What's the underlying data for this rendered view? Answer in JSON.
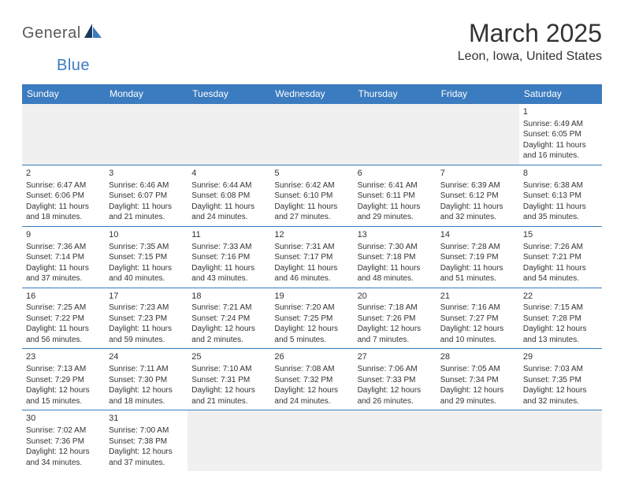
{
  "brand": {
    "text1": "General",
    "text2": "Blue",
    "text_color_1": "#5a5a5a",
    "text_color_2": "#3b7bbf",
    "mark_color_dark": "#1a3a5c",
    "mark_color_light": "#3b7bbf"
  },
  "title": "March 2025",
  "location": "Leon, Iowa, United States",
  "colors": {
    "header_bg": "#3b7bbf",
    "header_fg": "#ffffff",
    "cell_border": "#3b7bbf",
    "empty_bg": "#f0f0f0",
    "text": "#333333",
    "page_bg": "#ffffff"
  },
  "weekdays": [
    "Sunday",
    "Monday",
    "Tuesday",
    "Wednesday",
    "Thursday",
    "Friday",
    "Saturday"
  ],
  "weeks": [
    [
      null,
      null,
      null,
      null,
      null,
      null,
      {
        "d": "1",
        "sr": "Sunrise: 6:49 AM",
        "ss": "Sunset: 6:05 PM",
        "dl1": "Daylight: 11 hours",
        "dl2": "and 16 minutes."
      }
    ],
    [
      {
        "d": "2",
        "sr": "Sunrise: 6:47 AM",
        "ss": "Sunset: 6:06 PM",
        "dl1": "Daylight: 11 hours",
        "dl2": "and 18 minutes."
      },
      {
        "d": "3",
        "sr": "Sunrise: 6:46 AM",
        "ss": "Sunset: 6:07 PM",
        "dl1": "Daylight: 11 hours",
        "dl2": "and 21 minutes."
      },
      {
        "d": "4",
        "sr": "Sunrise: 6:44 AM",
        "ss": "Sunset: 6:08 PM",
        "dl1": "Daylight: 11 hours",
        "dl2": "and 24 minutes."
      },
      {
        "d": "5",
        "sr": "Sunrise: 6:42 AM",
        "ss": "Sunset: 6:10 PM",
        "dl1": "Daylight: 11 hours",
        "dl2": "and 27 minutes."
      },
      {
        "d": "6",
        "sr": "Sunrise: 6:41 AM",
        "ss": "Sunset: 6:11 PM",
        "dl1": "Daylight: 11 hours",
        "dl2": "and 29 minutes."
      },
      {
        "d": "7",
        "sr": "Sunrise: 6:39 AM",
        "ss": "Sunset: 6:12 PM",
        "dl1": "Daylight: 11 hours",
        "dl2": "and 32 minutes."
      },
      {
        "d": "8",
        "sr": "Sunrise: 6:38 AM",
        "ss": "Sunset: 6:13 PM",
        "dl1": "Daylight: 11 hours",
        "dl2": "and 35 minutes."
      }
    ],
    [
      {
        "d": "9",
        "sr": "Sunrise: 7:36 AM",
        "ss": "Sunset: 7:14 PM",
        "dl1": "Daylight: 11 hours",
        "dl2": "and 37 minutes."
      },
      {
        "d": "10",
        "sr": "Sunrise: 7:35 AM",
        "ss": "Sunset: 7:15 PM",
        "dl1": "Daylight: 11 hours",
        "dl2": "and 40 minutes."
      },
      {
        "d": "11",
        "sr": "Sunrise: 7:33 AM",
        "ss": "Sunset: 7:16 PM",
        "dl1": "Daylight: 11 hours",
        "dl2": "and 43 minutes."
      },
      {
        "d": "12",
        "sr": "Sunrise: 7:31 AM",
        "ss": "Sunset: 7:17 PM",
        "dl1": "Daylight: 11 hours",
        "dl2": "and 46 minutes."
      },
      {
        "d": "13",
        "sr": "Sunrise: 7:30 AM",
        "ss": "Sunset: 7:18 PM",
        "dl1": "Daylight: 11 hours",
        "dl2": "and 48 minutes."
      },
      {
        "d": "14",
        "sr": "Sunrise: 7:28 AM",
        "ss": "Sunset: 7:19 PM",
        "dl1": "Daylight: 11 hours",
        "dl2": "and 51 minutes."
      },
      {
        "d": "15",
        "sr": "Sunrise: 7:26 AM",
        "ss": "Sunset: 7:21 PM",
        "dl1": "Daylight: 11 hours",
        "dl2": "and 54 minutes."
      }
    ],
    [
      {
        "d": "16",
        "sr": "Sunrise: 7:25 AM",
        "ss": "Sunset: 7:22 PM",
        "dl1": "Daylight: 11 hours",
        "dl2": "and 56 minutes."
      },
      {
        "d": "17",
        "sr": "Sunrise: 7:23 AM",
        "ss": "Sunset: 7:23 PM",
        "dl1": "Daylight: 11 hours",
        "dl2": "and 59 minutes."
      },
      {
        "d": "18",
        "sr": "Sunrise: 7:21 AM",
        "ss": "Sunset: 7:24 PM",
        "dl1": "Daylight: 12 hours",
        "dl2": "and 2 minutes."
      },
      {
        "d": "19",
        "sr": "Sunrise: 7:20 AM",
        "ss": "Sunset: 7:25 PM",
        "dl1": "Daylight: 12 hours",
        "dl2": "and 5 minutes."
      },
      {
        "d": "20",
        "sr": "Sunrise: 7:18 AM",
        "ss": "Sunset: 7:26 PM",
        "dl1": "Daylight: 12 hours",
        "dl2": "and 7 minutes."
      },
      {
        "d": "21",
        "sr": "Sunrise: 7:16 AM",
        "ss": "Sunset: 7:27 PM",
        "dl1": "Daylight: 12 hours",
        "dl2": "and 10 minutes."
      },
      {
        "d": "22",
        "sr": "Sunrise: 7:15 AM",
        "ss": "Sunset: 7:28 PM",
        "dl1": "Daylight: 12 hours",
        "dl2": "and 13 minutes."
      }
    ],
    [
      {
        "d": "23",
        "sr": "Sunrise: 7:13 AM",
        "ss": "Sunset: 7:29 PM",
        "dl1": "Daylight: 12 hours",
        "dl2": "and 15 minutes."
      },
      {
        "d": "24",
        "sr": "Sunrise: 7:11 AM",
        "ss": "Sunset: 7:30 PM",
        "dl1": "Daylight: 12 hours",
        "dl2": "and 18 minutes."
      },
      {
        "d": "25",
        "sr": "Sunrise: 7:10 AM",
        "ss": "Sunset: 7:31 PM",
        "dl1": "Daylight: 12 hours",
        "dl2": "and 21 minutes."
      },
      {
        "d": "26",
        "sr": "Sunrise: 7:08 AM",
        "ss": "Sunset: 7:32 PM",
        "dl1": "Daylight: 12 hours",
        "dl2": "and 24 minutes."
      },
      {
        "d": "27",
        "sr": "Sunrise: 7:06 AM",
        "ss": "Sunset: 7:33 PM",
        "dl1": "Daylight: 12 hours",
        "dl2": "and 26 minutes."
      },
      {
        "d": "28",
        "sr": "Sunrise: 7:05 AM",
        "ss": "Sunset: 7:34 PM",
        "dl1": "Daylight: 12 hours",
        "dl2": "and 29 minutes."
      },
      {
        "d": "29",
        "sr": "Sunrise: 7:03 AM",
        "ss": "Sunset: 7:35 PM",
        "dl1": "Daylight: 12 hours",
        "dl2": "and 32 minutes."
      }
    ],
    [
      {
        "d": "30",
        "sr": "Sunrise: 7:02 AM",
        "ss": "Sunset: 7:36 PM",
        "dl1": "Daylight: 12 hours",
        "dl2": "and 34 minutes."
      },
      {
        "d": "31",
        "sr": "Sunrise: 7:00 AM",
        "ss": "Sunset: 7:38 PM",
        "dl1": "Daylight: 12 hours",
        "dl2": "and 37 minutes."
      },
      null,
      null,
      null,
      null,
      null
    ]
  ]
}
